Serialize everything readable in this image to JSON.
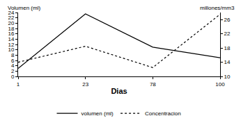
{
  "chart_data": {
    "type": "line",
    "xlabel": "Dias",
    "ylabel": "Volumen (ml)",
    "y2label": "millones/mm3",
    "categories": [
      1,
      23,
      78,
      100
    ],
    "series": [
      {
        "name": "volumen (ml)",
        "color": "#000000",
        "line_style": "solid",
        "values": [
          3,
          23.5,
          11,
          7
        ]
      },
      {
        "name": "Concentracion",
        "color": "#000000",
        "line_style": "dot",
        "axis": "y2",
        "values": [
          14,
          18.5,
          12.5,
          27.5
        ]
      }
    ],
    "ylim": [
      0,
      24
    ],
    "yticks": [
      0,
      2,
      4,
      6,
      8,
      10,
      12,
      14,
      16,
      18,
      20,
      22,
      24
    ],
    "y2lim": [
      10,
      28
    ],
    "y2ticks": [
      10,
      14,
      18,
      22,
      26
    ],
    "legend": "bottom",
    "grid": false
  }
}
